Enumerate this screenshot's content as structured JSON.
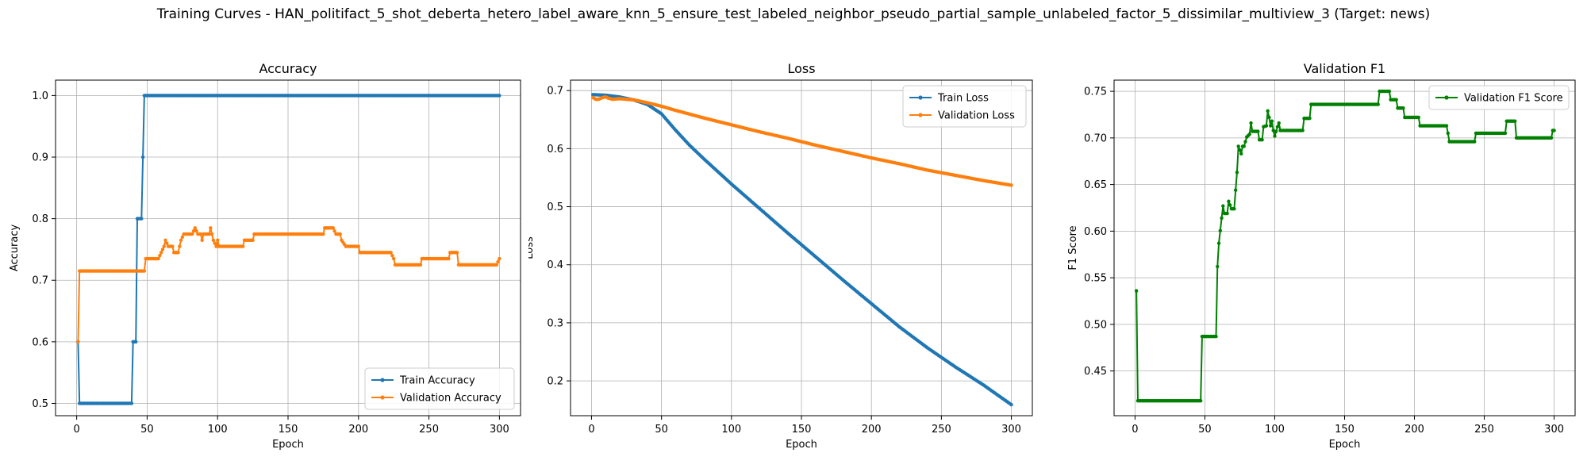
{
  "suptitle": "Training Curves - HAN_politifact_5_shot_deberta_hetero_label_aware_knn_5_ensure_test_labeled_neighbor_pseudo_partial_sample_unlabeled_factor_5_dissimilar_multiview_3 (Target: news)",
  "colors": {
    "blue": "#1f77b4",
    "orange": "#ff7f0e",
    "green": "#008000",
    "grid": "#b0b0b0"
  },
  "chart_data": [
    {
      "type": "line",
      "title": "Accuracy",
      "xlabel": "Epoch",
      "ylabel": "Accuracy",
      "xlim": [
        -15,
        315
      ],
      "ylim": [
        0.48,
        1.025
      ],
      "xticks": [
        0,
        50,
        100,
        150,
        200,
        250,
        300
      ],
      "yticks": [
        0.5,
        0.6,
        0.7,
        0.8,
        0.9,
        1.0
      ],
      "ytick_labels": [
        "0.5",
        "0.6",
        "0.7",
        "0.8",
        "0.9",
        "1.0"
      ],
      "grid": true,
      "legend_position": "lower-right",
      "series": [
        {
          "name": "Train Accuracy",
          "color": "blue",
          "points": [
            [
              1,
              0.6
            ],
            [
              2,
              0.5
            ],
            [
              39,
              0.5
            ],
            [
              40,
              0.6
            ],
            [
              42,
              0.6
            ],
            [
              43,
              0.8
            ],
            [
              46,
              0.8
            ],
            [
              47,
              0.9
            ],
            [
              48,
              1.0
            ],
            [
              300,
              1.0
            ]
          ]
        },
        {
          "name": "Validation Accuracy",
          "color": "orange",
          "points": [
            [
              1,
              0.6
            ],
            [
              2,
              0.715
            ],
            [
              48,
              0.715
            ],
            [
              49,
              0.735
            ],
            [
              58,
              0.735
            ],
            [
              60,
              0.745
            ],
            [
              62,
              0.755
            ],
            [
              63,
              0.765
            ],
            [
              65,
              0.755
            ],
            [
              68,
              0.755
            ],
            [
              69,
              0.745
            ],
            [
              72,
              0.745
            ],
            [
              73,
              0.755
            ],
            [
              74,
              0.765
            ],
            [
              76,
              0.775
            ],
            [
              82,
              0.775
            ],
            [
              84,
              0.785
            ],
            [
              86,
              0.775
            ],
            [
              88,
              0.775
            ],
            [
              89,
              0.765
            ],
            [
              90,
              0.775
            ],
            [
              94,
              0.775
            ],
            [
              95,
              0.785
            ],
            [
              96,
              0.775
            ],
            [
              97,
              0.765
            ],
            [
              99,
              0.755
            ],
            [
              100,
              0.765
            ],
            [
              101,
              0.755
            ],
            [
              118,
              0.755
            ],
            [
              119,
              0.765
            ],
            [
              125,
              0.765
            ],
            [
              126,
              0.775
            ],
            [
              175,
              0.775
            ],
            [
              176,
              0.785
            ],
            [
              182,
              0.785
            ],
            [
              184,
              0.775
            ],
            [
              187,
              0.775
            ],
            [
              188,
              0.765
            ],
            [
              191,
              0.755
            ],
            [
              200,
              0.755
            ],
            [
              201,
              0.745
            ],
            [
              223,
              0.745
            ],
            [
              225,
              0.735
            ],
            [
              226,
              0.725
            ],
            [
              244,
              0.725
            ],
            [
              245,
              0.735
            ],
            [
              264,
              0.735
            ],
            [
              265,
              0.745
            ],
            [
              270,
              0.745
            ],
            [
              271,
              0.725
            ],
            [
              298,
              0.725
            ],
            [
              300,
              0.735
            ]
          ]
        }
      ]
    },
    {
      "type": "line",
      "title": "Loss",
      "xlabel": "Epoch",
      "ylabel": "Loss",
      "xlim": [
        -15,
        315
      ],
      "ylim": [
        0.14,
        0.718
      ],
      "xticks": [
        0,
        50,
        100,
        150,
        200,
        250,
        300
      ],
      "yticks": [
        0.2,
        0.3,
        0.4,
        0.5,
        0.6,
        0.7
      ],
      "ytick_labels": [
        "0.2",
        "0.3",
        "0.4",
        "0.5",
        "0.6",
        "0.7"
      ],
      "grid": true,
      "legend_position": "top-right",
      "series": [
        {
          "name": "Train Loss",
          "color": "blue",
          "points": [
            [
              1,
              0.693
            ],
            [
              10,
              0.692
            ],
            [
              20,
              0.689
            ],
            [
              30,
              0.684
            ],
            [
              40,
              0.676
            ],
            [
              50,
              0.66
            ],
            [
              60,
              0.632
            ],
            [
              70,
              0.606
            ],
            [
              80,
              0.583
            ],
            [
              90,
              0.561
            ],
            [
              100,
              0.539
            ],
            [
              120,
              0.497
            ],
            [
              140,
              0.455
            ],
            [
              160,
              0.414
            ],
            [
              180,
              0.373
            ],
            [
              200,
              0.333
            ],
            [
              220,
              0.293
            ],
            [
              240,
              0.257
            ],
            [
              260,
              0.224
            ],
            [
              280,
              0.193
            ],
            [
              300,
              0.159
            ]
          ]
        },
        {
          "name": "Validation Loss",
          "color": "orange",
          "points": [
            [
              1,
              0.688
            ],
            [
              3,
              0.685
            ],
            [
              5,
              0.685
            ],
            [
              8,
              0.688
            ],
            [
              10,
              0.689
            ],
            [
              12,
              0.687
            ],
            [
              15,
              0.685
            ],
            [
              20,
              0.686
            ],
            [
              25,
              0.685
            ],
            [
              30,
              0.684
            ],
            [
              40,
              0.679
            ],
            [
              50,
              0.673
            ],
            [
              60,
              0.666
            ],
            [
              80,
              0.653
            ],
            [
              100,
              0.641
            ],
            [
              120,
              0.629
            ],
            [
              140,
              0.618
            ],
            [
              160,
              0.606
            ],
            [
              180,
              0.595
            ],
            [
              200,
              0.584
            ],
            [
              220,
              0.574
            ],
            [
              240,
              0.563
            ],
            [
              260,
              0.554
            ],
            [
              280,
              0.545
            ],
            [
              300,
              0.537
            ]
          ]
        }
      ]
    },
    {
      "type": "line",
      "title": "Validation F1",
      "xlabel": "Epoch",
      "ylabel": "F1 Score",
      "xlim": [
        -15,
        315
      ],
      "ylim": [
        0.402,
        0.762
      ],
      "xticks": [
        0,
        50,
        100,
        150,
        200,
        250,
        300
      ],
      "yticks": [
        0.45,
        0.5,
        0.55,
        0.6,
        0.65,
        0.7,
        0.75
      ],
      "ytick_labels": [
        "0.45",
        "0.50",
        "0.55",
        "0.60",
        "0.65",
        "0.70",
        "0.75"
      ],
      "grid": true,
      "legend_position": "top-right",
      "series": [
        {
          "name": "Validation F1 Score",
          "color": "green",
          "points": [
            [
              1,
              0.536
            ],
            [
              2,
              0.418
            ],
            [
              47,
              0.418
            ],
            [
              48,
              0.487
            ],
            [
              58,
              0.487
            ],
            [
              59,
              0.562
            ],
            [
              60,
              0.587
            ],
            [
              62,
              0.614
            ],
            [
              63,
              0.627
            ],
            [
              64,
              0.619
            ],
            [
              66,
              0.619
            ],
            [
              67,
              0.632
            ],
            [
              69,
              0.624
            ],
            [
              71,
              0.624
            ],
            [
              72,
              0.644
            ],
            [
              73,
              0.663
            ],
            [
              74,
              0.691
            ],
            [
              76,
              0.683
            ],
            [
              77,
              0.691
            ],
            [
              78,
              0.691
            ],
            [
              80,
              0.701
            ],
            [
              82,
              0.704
            ],
            [
              83,
              0.716
            ],
            [
              84,
              0.707
            ],
            [
              88,
              0.707
            ],
            [
              89,
              0.698
            ],
            [
              91,
              0.698
            ],
            [
              92,
              0.712
            ],
            [
              94,
              0.713
            ],
            [
              95,
              0.729
            ],
            [
              96,
              0.722
            ],
            [
              97,
              0.713
            ],
            [
              98,
              0.718
            ],
            [
              99,
              0.708
            ],
            [
              100,
              0.702
            ],
            [
              102,
              0.712
            ],
            [
              103,
              0.716
            ],
            [
              104,
              0.708
            ],
            [
              120,
              0.708
            ],
            [
              121,
              0.721
            ],
            [
              125,
              0.721
            ],
            [
              126,
              0.736
            ],
            [
              174,
              0.736
            ],
            [
              175,
              0.75
            ],
            [
              182,
              0.75
            ],
            [
              183,
              0.741
            ],
            [
              187,
              0.741
            ],
            [
              188,
              0.732
            ],
            [
              192,
              0.732
            ],
            [
              193,
              0.722
            ],
            [
              203,
              0.722
            ],
            [
              204,
              0.713
            ],
            [
              223,
              0.713
            ],
            [
              224,
              0.705
            ],
            [
              225,
              0.696
            ],
            [
              243,
              0.696
            ],
            [
              244,
              0.705
            ],
            [
              265,
              0.705
            ],
            [
              266,
              0.718
            ],
            [
              272,
              0.718
            ],
            [
              273,
              0.7
            ],
            [
              298,
              0.7
            ],
            [
              299,
              0.708
            ],
            [
              300,
              0.708
            ]
          ]
        }
      ]
    }
  ]
}
